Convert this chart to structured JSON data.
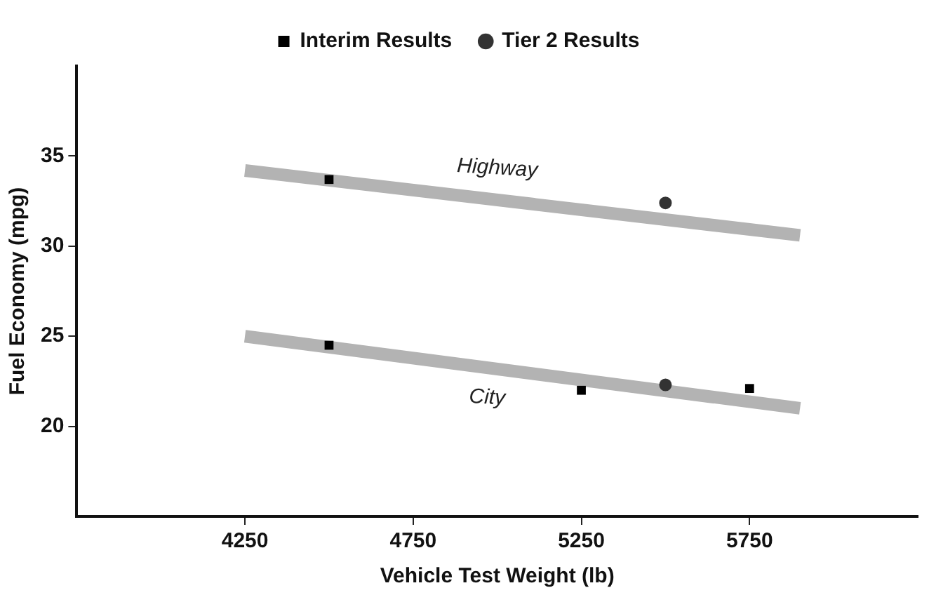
{
  "chart_data": {
    "type": "scatter",
    "xlabel": "Vehicle Test Weight (lb)",
    "ylabel": "Fuel Economy (mpg)",
    "xlim": [
      3750,
      6250
    ],
    "xticks": [
      4250,
      4750,
      5250,
      5750
    ],
    "ylim": [
      15,
      40
    ],
    "yticks": [
      20,
      25,
      30,
      35
    ],
    "grid": false,
    "legend": "top",
    "series": [
      {
        "type": "line",
        "color": "#b3b3b3",
        "x": [
          4250,
          5900
        ],
        "values": [
          34.2,
          30.6
        ],
        "marker": "none"
      },
      {
        "type": "line",
        "color": "#b3b3b3",
        "x": [
          4250,
          5900
        ],
        "values": [
          25.0,
          21.0
        ],
        "marker": "none"
      },
      {
        "type": "scatter",
        "name": "Interim Results",
        "color": "#000000",
        "marker": "square",
        "x": [
          4500,
          4500,
          5250,
          5750
        ],
        "values": [
          33.7,
          24.5,
          22.0,
          22.1
        ]
      },
      {
        "type": "scatter",
        "name": "Tier 2 Results",
        "color": "#333333",
        "marker": "circle",
        "x": [
          5500,
          5500
        ],
        "values": [
          32.4,
          22.3
        ]
      }
    ],
    "annotations": [
      {
        "text": "Highway",
        "x": 5000,
        "y": 32.6
      },
      {
        "text": "City",
        "x": 4970,
        "y": 23.3
      }
    ]
  }
}
